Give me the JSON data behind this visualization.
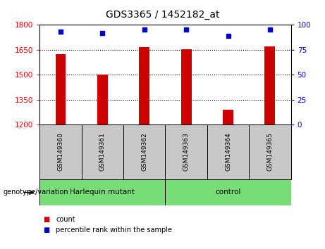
{
  "title": "GDS3365 / 1452182_at",
  "samples": [
    "GSM149360",
    "GSM149361",
    "GSM149362",
    "GSM149363",
    "GSM149364",
    "GSM149365"
  ],
  "counts": [
    1625,
    1500,
    1665,
    1655,
    1290,
    1670
  ],
  "percentiles": [
    93,
    92,
    95,
    95,
    89,
    95
  ],
  "ylim_left": [
    1200,
    1800
  ],
  "ylim_right": [
    0,
    100
  ],
  "yticks_left": [
    1200,
    1350,
    1500,
    1650,
    1800
  ],
  "yticks_right": [
    0,
    25,
    50,
    75,
    100
  ],
  "bar_color": "#cc0000",
  "dot_color": "#0000cc",
  "groups": [
    {
      "label": "Harlequin mutant",
      "indices": [
        0,
        1,
        2
      ]
    },
    {
      "label": "control",
      "indices": [
        3,
        4,
        5
      ]
    }
  ],
  "group_label": "genotype/variation",
  "legend_count_label": "count",
  "legend_pct_label": "percentile rank within the sample",
  "bg_color": "#ffffff",
  "plot_bg": "#ffffff",
  "tick_label_area_color": "#c8c8c8",
  "group_area_color": "#77dd77"
}
